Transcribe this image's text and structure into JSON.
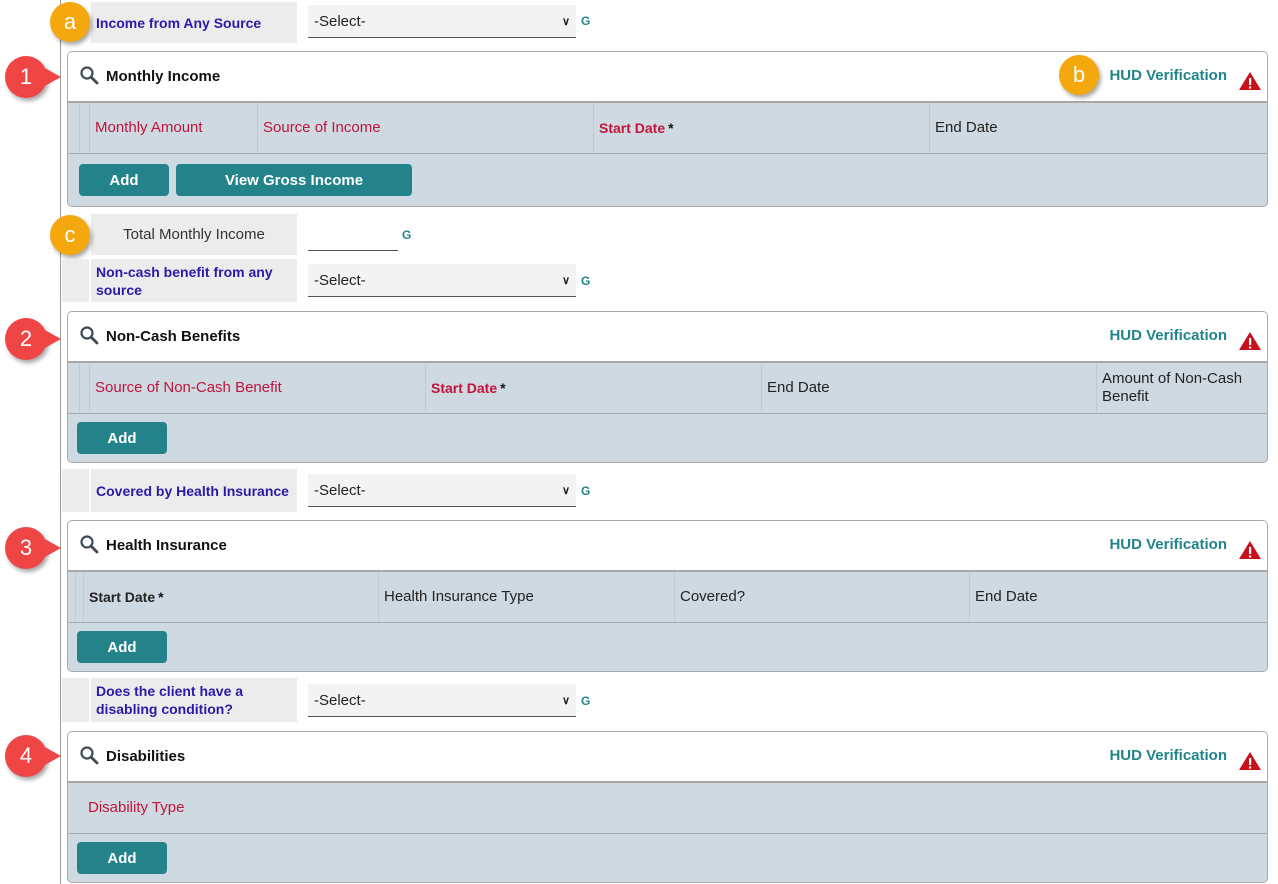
{
  "colors": {
    "accent": "#23828a",
    "label_blue": "#2a1aa8",
    "required_red": "#c0143c",
    "callout_orange": "#f5a80d",
    "callout_red": "#f04545"
  },
  "fields": {
    "income_any_source": {
      "label": "Income from Any Source",
      "value": "-Select-",
      "g": "G"
    },
    "total_monthly_income": {
      "label": "Total Monthly Income",
      "value": "",
      "g": "G"
    },
    "non_cash_any_source": {
      "label": "Non-cash benefit from any source",
      "value": "-Select-",
      "g": "G"
    },
    "covered_health": {
      "label": "Covered by Health Insurance",
      "value": "-Select-",
      "g": "G"
    },
    "disabling_condition": {
      "label": "Does the client have a disabling condition?",
      "value": "-Select-",
      "g": "G"
    }
  },
  "callouts": {
    "a": "a",
    "b": "b",
    "c": "c",
    "n1": "1",
    "n2": "2",
    "n3": "3",
    "n4": "4"
  },
  "panels": {
    "monthly_income": {
      "title": "Monthly Income",
      "hud": "HUD Verification",
      "columns": [
        "Monthly Amount",
        "Source of Income",
        "Start Date",
        "End Date"
      ],
      "add": "Add",
      "gross": "View Gross Income"
    },
    "non_cash": {
      "title": "Non-Cash Benefits",
      "hud": "HUD Verification",
      "columns": [
        "Source of Non-Cash Benefit",
        "Start Date",
        "End Date",
        "Amount of Non-Cash Benefit"
      ],
      "add": "Add"
    },
    "health": {
      "title": "Health Insurance",
      "hud": "HUD Verification",
      "columns": [
        "Start Date",
        "Health Insurance Type",
        "Covered?",
        "End Date"
      ],
      "add": "Add"
    },
    "disabilities": {
      "title": "Disabilities",
      "hud": "HUD Verification",
      "columns": [
        "Disability Type"
      ],
      "add": "Add"
    }
  },
  "required_mark": "*"
}
